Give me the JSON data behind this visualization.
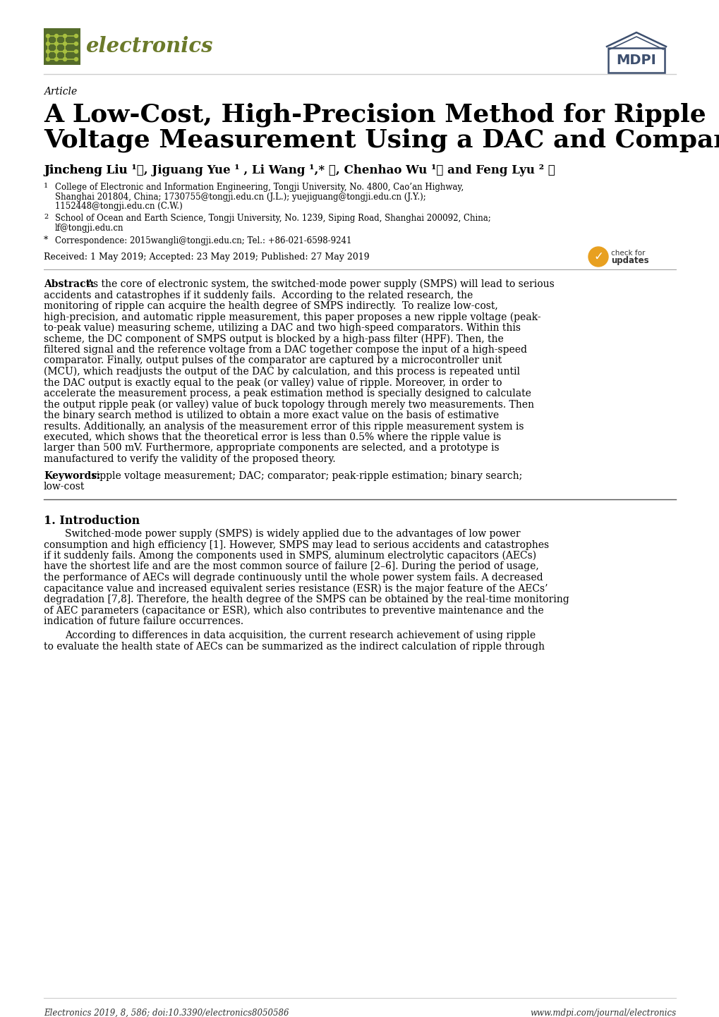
{
  "bg_color": "#ffffff",
  "text_color": "#000000",
  "title_line1": "A Low-Cost, High-Precision Method for Ripple",
  "title_line2": "Voltage Measurement Using a DAC and Comparators",
  "article_label": "Article",
  "affil1_line1": "College of Electronic and Information Engineering, Tongji University, No. 4800, Cao’an Highway,",
  "affil1_line2": "Shanghai 201804, China; 1730755@tongji.edu.cn (J.L.); yuejiguang@tongji.edu.cn (J.Y.);",
  "affil1_line3": "1152448@tongji.edu.cn (C.W.)",
  "affil2_line1": "School of Ocean and Earth Science, Tongji University, No. 1239, Siping Road, Shanghai 200092, China;",
  "affil2_line2": "lf@tongji.edu.cn",
  "affil3": "Correspondence: 2015wangli@tongji.edu.cn; Tel.: +86-021-6598-9241",
  "received": "Received: 1 May 2019; Accepted: 23 May 2019; Published: 27 May 2019",
  "abstract_text": "As the core of electronic system, the switched-mode power supply (SMPS) will lead to serious accidents and catastrophes if it suddenly fails.  According to the related research, the monitoring of ripple can acquire the health degree of SMPS indirectly.  To realize low-cost, high-precision, and automatic ripple measurement, this paper proposes a new ripple voltage (peak-to-peak value) measuring scheme, utilizing a DAC and two high-speed comparators. Within this scheme, the DC component of SMPS output is blocked by a high-pass filter (HPF). Then, the filtered signal and the reference voltage from a DAC together compose the input of a high-speed comparator. Finally, output pulses of the comparator are captured by a microcontroller unit (MCU), which readjusts the output of the DAC by calculation, and this process is repeated until the DAC output is exactly equal to the peak (or valley) value of ripple. Moreover, in order to accelerate the measurement process, a peak estimation method is specially designed to calculate the output ripple peak (or valley) value of buck topology through merely two measurements. Then the binary search method is utilized to obtain a more exact value on the basis of estimative results. Additionally, an analysis of the measurement error of this ripple measurement system is executed, which shows that the theoretical error is less than 0.5% where the ripple value is larger than 500 mV. Furthermore, appropriate components are selected, and a prototype is manufactured to verify the validity of the proposed theory.",
  "keywords_line1": "ripple voltage measurement; DAC; comparator; peak-ripple estimation; binary search;",
  "keywords_line2": "low-cost",
  "section1_title": "1. Introduction",
  "sec1_p1_lines": [
    "Switched-mode power supply (SMPS) is widely applied due to the advantages of low power",
    "consumption and high efficiency [1]. However, SMPS may lead to serious accidents and catastrophes",
    "if it suddenly fails. Among the components used in SMPS, aluminum electrolytic capacitors (AECs)",
    "have the shortest life and are the most common source of failure [2–6]. During the period of usage,",
    "the performance of AECs will degrade continuously until the whole power system fails. A decreased",
    "capacitance value and increased equivalent series resistance (ESR) is the major feature of the AECs’",
    "degradation [7,8]. Therefore, the health degree of the SMPS can be obtained by the real-time monitoring",
    "of AEC parameters (capacitance or ESR), which also contributes to preventive maintenance and the",
    "indication of future failure occurrences."
  ],
  "sec1_p2_lines": [
    "According to differences in data acquisition, the current research achievement of using ripple",
    "to evaluate the health state of AECs can be summarized as the indirect calculation of ripple through"
  ],
  "footer_left": "Electronics 2019, 8, 586; doi:10.3390/electronics8050586",
  "footer_right": "www.mdpi.com/journal/electronics",
  "electronics_text_color": "#6b7a2a",
  "electronics_box_color": "#546b2a",
  "mdpi_color": "#3d4f6e"
}
